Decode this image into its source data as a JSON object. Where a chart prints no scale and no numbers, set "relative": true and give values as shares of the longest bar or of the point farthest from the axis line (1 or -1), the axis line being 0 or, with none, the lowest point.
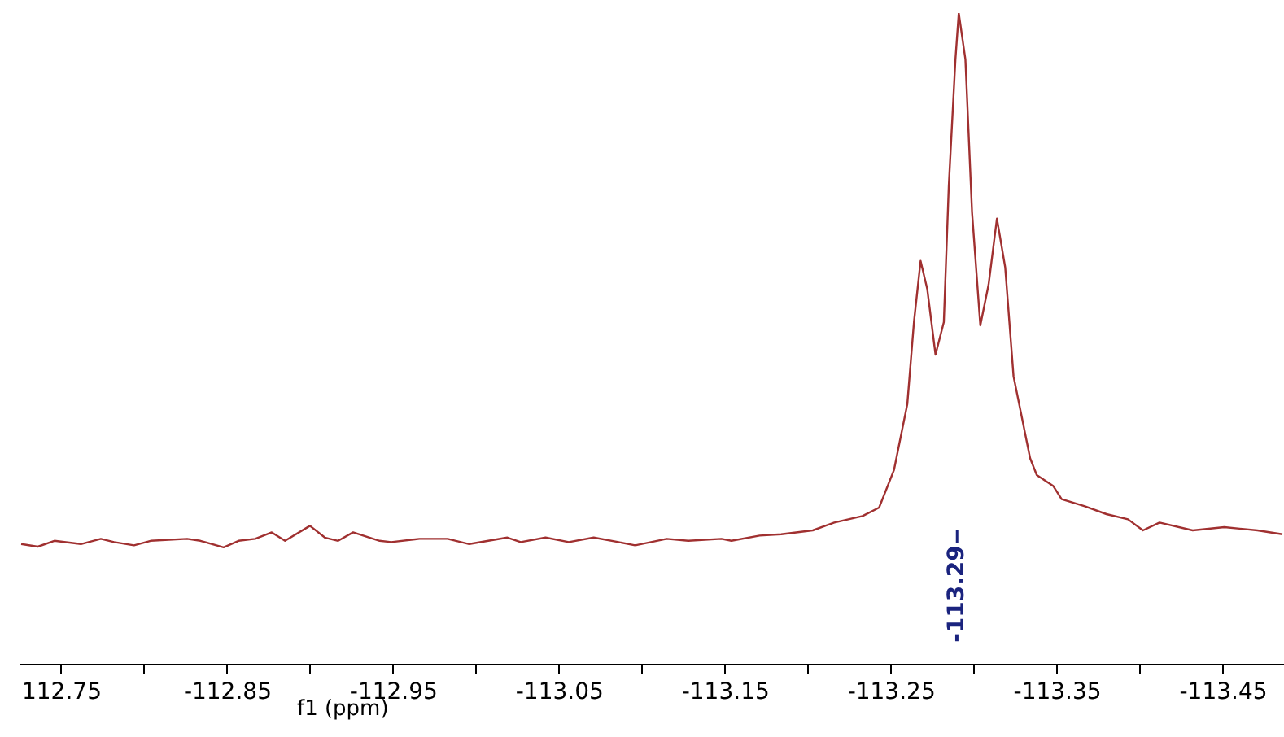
{
  "chart_data": {
    "type": "line",
    "xlabel": "f1 (ppm)",
    "relative": true,
    "xlim": [
      -112.725,
      -113.487
    ],
    "xticks": [
      {
        "value": -112.75,
        "label": "112.75"
      },
      {
        "value": -112.8,
        "label": null
      },
      -112.85,
      {
        "value": -112.9,
        "label": null
      },
      -112.95,
      {
        "value": -113.0,
        "label": null
      },
      -113.05,
      {
        "value": -113.1,
        "label": null
      },
      -113.15,
      {
        "value": -113.2,
        "label": null
      },
      -113.25,
      {
        "value": -113.3,
        "label": null
      },
      -113.35,
      {
        "value": -113.4,
        "label": null
      },
      -113.45
    ],
    "ref_lines": [
      {
        "axis": "x",
        "value": -113.29,
        "label": "-113.29",
        "color": "#1a237e"
      }
    ],
    "series": [
      {
        "color": "#a03030",
        "x": [
          -112.726,
          -112.736,
          -112.746,
          -112.762,
          -112.774,
          -112.782,
          -112.794,
          -112.804,
          -112.826,
          -112.834,
          -112.848,
          -112.857,
          -112.867,
          -112.877,
          -112.885,
          -112.9,
          -112.909,
          -112.917,
          -112.926,
          -112.942,
          -112.949,
          -112.966,
          -112.983,
          -112.996,
          -113.019,
          -113.027,
          -113.042,
          -113.056,
          -113.071,
          -113.086,
          -113.096,
          -113.115,
          -113.128,
          -113.148,
          -113.154,
          -113.171,
          -113.184,
          -113.203,
          -113.216,
          -113.233,
          -113.243,
          -113.252,
          -113.26,
          -113.264,
          -113.268,
          -113.272,
          -113.277,
          -113.282,
          -113.285,
          -113.289,
          -113.291,
          -113.295,
          -113.299,
          -113.304,
          -113.309,
          -113.314,
          -113.319,
          -113.324,
          -113.334,
          -113.338,
          -113.348,
          -113.353,
          -113.367,
          -113.38,
          -113.393,
          -113.402,
          -113.412,
          -113.432,
          -113.451,
          -113.471,
          -113.486
        ],
        "values": [
          0.184,
          0.18,
          0.189,
          0.184,
          0.192,
          0.187,
          0.182,
          0.189,
          0.192,
          0.189,
          0.179,
          0.189,
          0.192,
          0.202,
          0.189,
          0.212,
          0.194,
          0.189,
          0.202,
          0.189,
          0.187,
          0.192,
          0.192,
          0.184,
          0.194,
          0.187,
          0.194,
          0.187,
          0.194,
          0.187,
          0.182,
          0.192,
          0.189,
          0.192,
          0.189,
          0.197,
          0.199,
          0.205,
          0.217,
          0.227,
          0.24,
          0.298,
          0.399,
          0.525,
          0.619,
          0.576,
          0.475,
          0.525,
          0.735,
          0.929,
          1,
          0.929,
          0.694,
          0.52,
          0.583,
          0.684,
          0.609,
          0.442,
          0.316,
          0.29,
          0.273,
          0.253,
          0.242,
          0.23,
          0.222,
          0.205,
          0.217,
          0.205,
          0.21,
          0.205,
          0.199
        ]
      }
    ]
  }
}
